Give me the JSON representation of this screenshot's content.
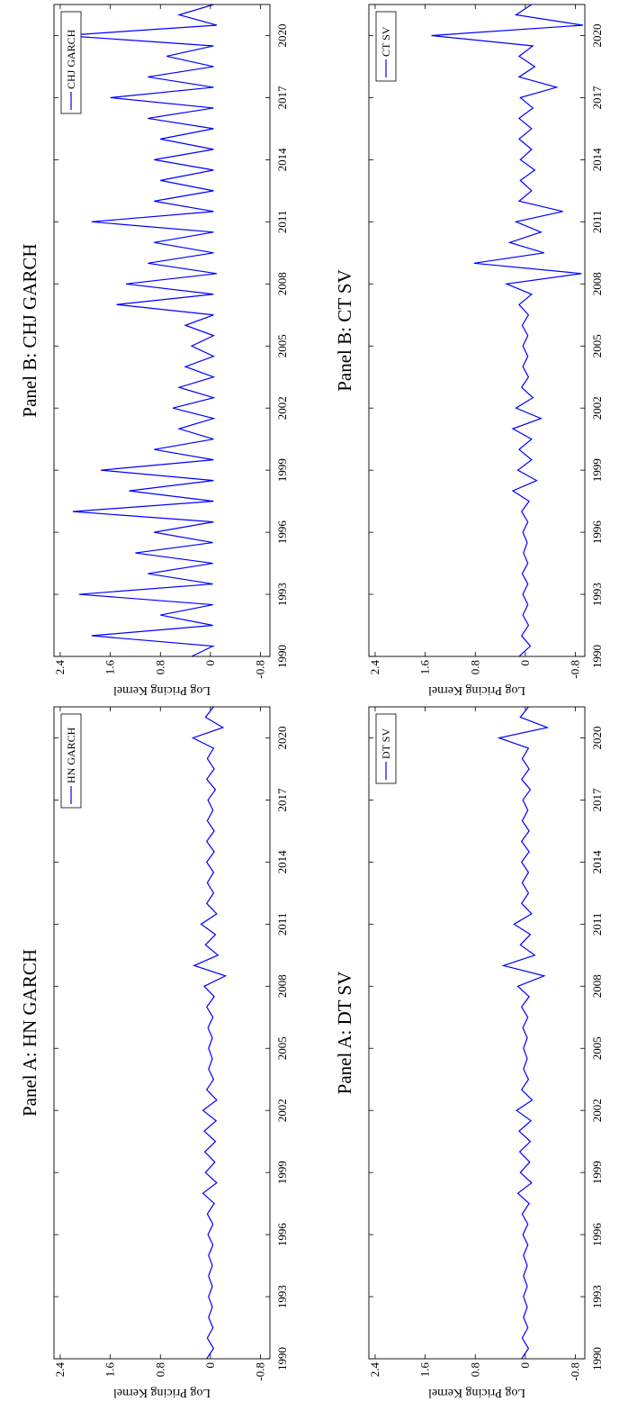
{
  "chart_data": [
    {
      "type": "line",
      "title": "Panel A: HN GARCH",
      "y_label": "Log Pricing Kernel",
      "x": [
        1990,
        1990.5,
        1991,
        1991.5,
        1992,
        1992.5,
        1993,
        1993.5,
        1994,
        1994.5,
        1995,
        1995.5,
        1996,
        1996.5,
        1997,
        1997.5,
        1998,
        1998.5,
        1999,
        1999.5,
        2000,
        2000.5,
        2001,
        2001.5,
        2002,
        2002.5,
        2003,
        2003.5,
        2004,
        2004.5,
        2005,
        2005.5,
        2006,
        2006.5,
        2007,
        2007.5,
        2008,
        2008.5,
        2009,
        2009.5,
        2010,
        2010.5,
        2011,
        2011.5,
        2012,
        2012.5,
        2013,
        2013.5,
        2014,
        2014.5,
        2015,
        2015.5,
        2016,
        2016.5,
        2017,
        2017.5,
        2018,
        2018.5,
        2019,
        2019.5,
        2020,
        2020.5,
        2021,
        2021.5
      ],
      "series": [
        {
          "name": "HN GARCH",
          "color": "#0000ff",
          "values": [
            0.06,
            -0.05,
            0.05,
            -0.04,
            0.03,
            -0.03,
            0.03,
            -0.03,
            0.03,
            -0.03,
            0.03,
            -0.04,
            0.04,
            -0.04,
            0.05,
            -0.06,
            0.12,
            -0.1,
            0.08,
            -0.07,
            0.09,
            -0.08,
            0.1,
            -0.09,
            0.12,
            -0.1,
            0.06,
            -0.05,
            0.03,
            -0.03,
            0.03,
            -0.03,
            0.04,
            -0.04,
            0.06,
            -0.06,
            0.1,
            -0.24,
            0.26,
            -0.12,
            0.08,
            -0.08,
            0.15,
            -0.1,
            0.06,
            -0.05,
            0.05,
            -0.05,
            0.06,
            -0.06,
            0.06,
            -0.06,
            0.05,
            -0.04,
            0.04,
            -0.08,
            0.06,
            -0.06,
            0.05,
            -0.05,
            0.28,
            -0.2,
            0.08,
            -0.05
          ]
        }
      ],
      "xlim": [
        1990,
        2021.5
      ],
      "ylim": [
        -0.95,
        2.5
      ],
      "xticks": [
        1990,
        1993,
        1996,
        1999,
        2002,
        2005,
        2008,
        2011,
        2014,
        2017,
        2020
      ],
      "yticks": [
        2.4,
        1.6,
        0.8,
        0,
        -0.8
      ],
      "legend": "upper right"
    },
    {
      "type": "line",
      "title": "Panel B: CHJ GARCH",
      "y_label": "Log Pricing Kernel",
      "x": [
        1990,
        1990.5,
        1991,
        1991.5,
        1992,
        1992.5,
        1993,
        1993.5,
        1994,
        1994.5,
        1995,
        1995.5,
        1996,
        1996.5,
        1997,
        1997.5,
        1998,
        1998.5,
        1999,
        1999.5,
        2000,
        2000.5,
        2001,
        2001.5,
        2002,
        2002.5,
        2003,
        2003.5,
        2004,
        2004.5,
        2005,
        2005.5,
        2006,
        2006.5,
        2007,
        2007.5,
        2008,
        2008.5,
        2009,
        2009.5,
        2010,
        2010.5,
        2011,
        2011.5,
        2012,
        2012.5,
        2013,
        2013.5,
        2014,
        2014.5,
        2015,
        2015.5,
        2016,
        2016.5,
        2017,
        2017.5,
        2018,
        2018.5,
        2019,
        2019.5,
        2020,
        2020.5,
        2021,
        2021.5
      ],
      "series": [
        {
          "name": "CHJ GARCH",
          "color": "#0000ff",
          "values": [
            0.3,
            -0.04,
            1.9,
            -0.04,
            0.8,
            -0.04,
            2.1,
            -0.04,
            1.0,
            -0.04,
            1.2,
            -0.04,
            0.9,
            -0.05,
            2.2,
            -0.05,
            1.3,
            -0.05,
            1.75,
            -0.05,
            0.9,
            -0.05,
            0.5,
            -0.05,
            0.6,
            -0.05,
            0.5,
            -0.05,
            0.4,
            -0.05,
            0.3,
            -0.05,
            0.4,
            -0.05,
            1.5,
            -0.05,
            1.35,
            -0.1,
            1.0,
            -0.05,
            0.9,
            -0.05,
            1.9,
            -0.05,
            0.9,
            -0.05,
            0.8,
            -0.05,
            0.9,
            -0.05,
            0.8,
            -0.05,
            1.0,
            -0.05,
            1.6,
            -0.05,
            1.0,
            -0.05,
            0.7,
            -0.05,
            2.35,
            -0.1,
            0.5,
            -0.05
          ]
        }
      ],
      "xlim": [
        1990,
        2021.5
      ],
      "ylim": [
        -0.95,
        2.5
      ],
      "xticks": [
        1990,
        1993,
        1996,
        1999,
        2002,
        2005,
        2008,
        2011,
        2014,
        2017,
        2020
      ],
      "yticks": [
        2.4,
        1.6,
        0.8,
        0,
        -0.8
      ],
      "legend": "upper right"
    },
    {
      "type": "line",
      "title": "Panel A: DT SV",
      "y_label": "Log Pricing Kernel",
      "x": [
        1990,
        1990.5,
        1991,
        1991.5,
        1992,
        1992.5,
        1993,
        1993.5,
        1994,
        1994.5,
        1995,
        1995.5,
        1996,
        1996.5,
        1997,
        1997.5,
        1998,
        1998.5,
        1999,
        1999.5,
        2000,
        2000.5,
        2001,
        2001.5,
        2002,
        2002.5,
        2003,
        2003.5,
        2004,
        2004.5,
        2005,
        2005.5,
        2006,
        2006.5,
        2007,
        2007.5,
        2008,
        2008.5,
        2009,
        2009.5,
        2010,
        2010.5,
        2011,
        2011.5,
        2012,
        2012.5,
        2013,
        2013.5,
        2014,
        2014.5,
        2015,
        2015.5,
        2016,
        2016.5,
        2017,
        2017.5,
        2018,
        2018.5,
        2019,
        2019.5,
        2020,
        2020.5,
        2021,
        2021.5
      ],
      "series": [
        {
          "name": "DT SV",
          "color": "#0000ff",
          "values": [
            0.06,
            -0.05,
            0.05,
            -0.04,
            0.03,
            -0.03,
            0.03,
            -0.03,
            0.03,
            -0.03,
            0.03,
            -0.04,
            0.04,
            -0.04,
            0.05,
            -0.06,
            0.12,
            -0.1,
            0.08,
            -0.07,
            0.09,
            -0.08,
            0.1,
            -0.09,
            0.14,
            -0.11,
            0.06,
            -0.05,
            0.03,
            -0.03,
            0.03,
            -0.03,
            0.04,
            -0.04,
            0.06,
            -0.06,
            0.12,
            -0.3,
            0.35,
            -0.15,
            0.08,
            -0.08,
            0.18,
            -0.1,
            0.06,
            -0.05,
            0.05,
            -0.05,
            0.06,
            -0.06,
            0.06,
            -0.06,
            0.05,
            -0.04,
            0.04,
            -0.08,
            0.06,
            -0.06,
            0.05,
            -0.05,
            0.42,
            -0.35,
            0.08,
            -0.05
          ]
        }
      ],
      "xlim": [
        1990,
        2021.5
      ],
      "ylim": [
        -0.95,
        2.5
      ],
      "xticks": [
        1990,
        1993,
        1996,
        1999,
        2002,
        2005,
        2008,
        2011,
        2014,
        2017,
        2020
      ],
      "yticks": [
        2.4,
        1.6,
        0.8,
        0,
        -0.8
      ],
      "legend": "upper right"
    },
    {
      "type": "line",
      "title": "Panel B: CT SV",
      "y_label": "Log Pricing Kernel",
      "x": [
        1990,
        1990.5,
        1991,
        1991.5,
        1992,
        1992.5,
        1993,
        1993.5,
        1994,
        1994.5,
        1995,
        1995.5,
        1996,
        1996.5,
        1997,
        1997.5,
        1998,
        1998.5,
        1999,
        1999.5,
        2000,
        2000.5,
        2001,
        2001.5,
        2002,
        2002.5,
        2003,
        2003.5,
        2004,
        2004.5,
        2005,
        2005.5,
        2006,
        2006.5,
        2007,
        2007.5,
        2008,
        2008.5,
        2009,
        2009.5,
        2010,
        2010.5,
        2011,
        2011.5,
        2012,
        2012.5,
        2013,
        2013.5,
        2014,
        2014.5,
        2015,
        2015.5,
        2016,
        2016.5,
        2017,
        2017.5,
        2018,
        2018.5,
        2019,
        2019.5,
        2020,
        2020.5,
        2021,
        2021.5
      ],
      "series": [
        {
          "name": "CT SV",
          "color": "#0000ff",
          "values": [
            0.1,
            -0.08,
            0.06,
            -0.05,
            0.04,
            -0.04,
            0.04,
            -0.04,
            0.05,
            -0.04,
            0.03,
            -0.03,
            0.04,
            -0.04,
            0.06,
            -0.06,
            0.2,
            -0.18,
            0.12,
            -0.1,
            0.1,
            -0.1,
            0.2,
            -0.25,
            0.15,
            -0.12,
            0.06,
            -0.05,
            0.04,
            -0.04,
            0.04,
            -0.04,
            0.05,
            -0.05,
            0.1,
            -0.1,
            0.3,
            -0.9,
            0.82,
            -0.3,
            0.25,
            -0.25,
            0.15,
            -0.6,
            0.1,
            -0.1,
            0.08,
            -0.15,
            0.08,
            -0.1,
            0.1,
            -0.1,
            0.1,
            -0.12,
            0.08,
            -0.5,
            0.1,
            -0.15,
            0.1,
            -0.12,
            1.5,
            -0.92,
            0.15,
            -0.1
          ]
        }
      ],
      "xlim": [
        1990,
        2021.5
      ],
      "ylim": [
        -0.95,
        2.5
      ],
      "xticks": [
        1990,
        1993,
        1996,
        1999,
        2002,
        2005,
        2008,
        2011,
        2014,
        2017,
        2020
      ],
      "yticks": [
        2.4,
        1.6,
        0.8,
        0,
        -0.8
      ],
      "legend": "upper right"
    }
  ]
}
